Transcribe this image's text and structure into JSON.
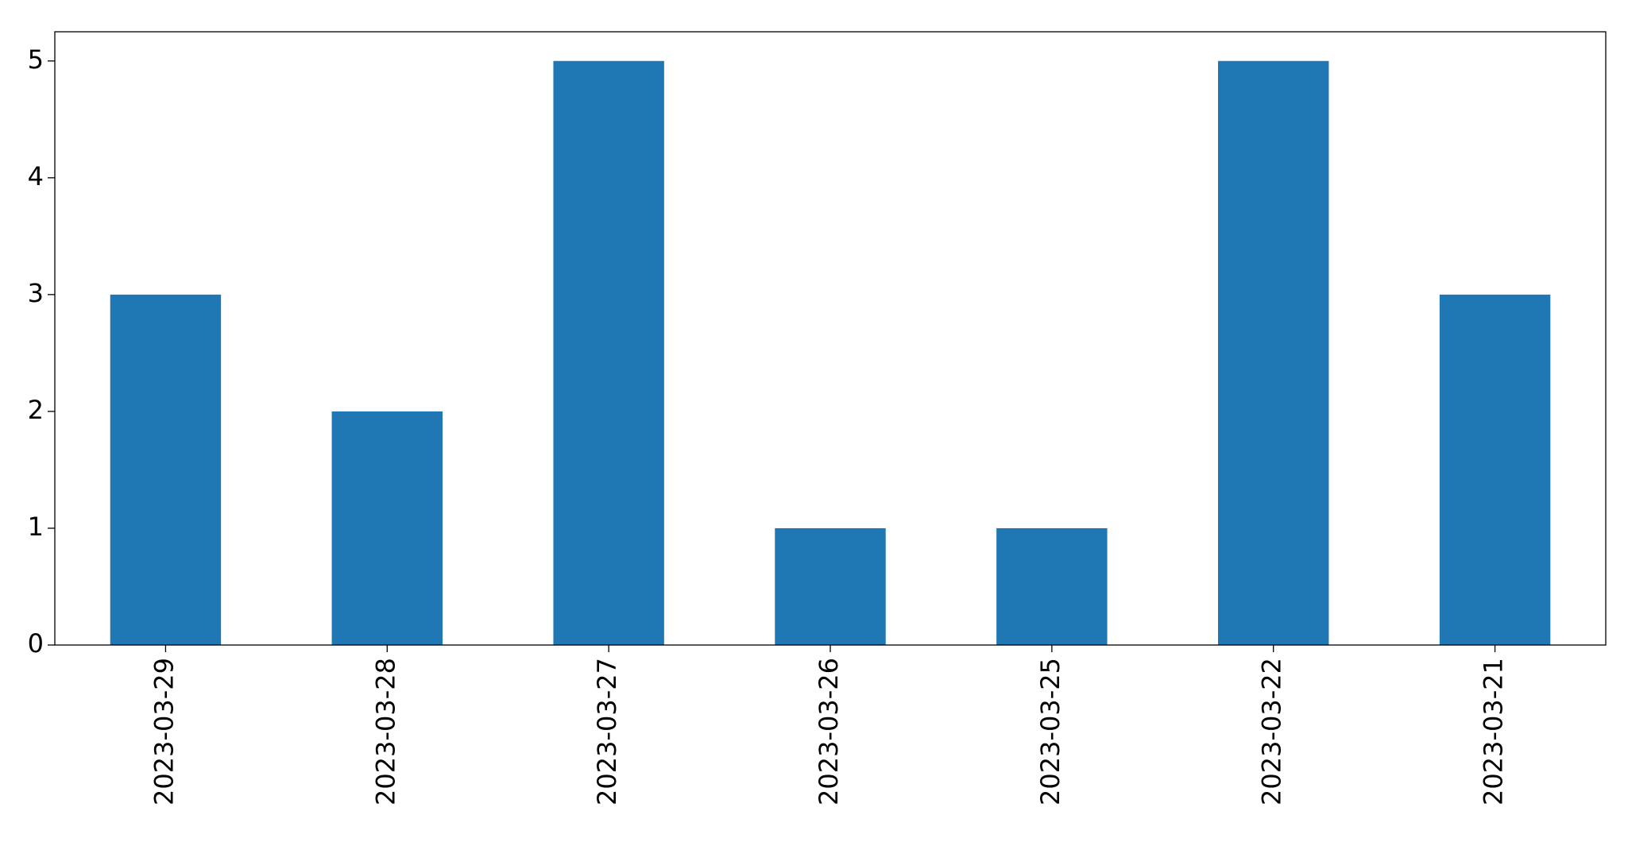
{
  "chart_data": {
    "type": "bar",
    "title": "",
    "xlabel": "",
    "ylabel": "",
    "categories": [
      "2023-03-29",
      "2023-03-28",
      "2023-03-27",
      "2023-03-26",
      "2023-03-25",
      "2023-03-22",
      "2023-03-21"
    ],
    "values": [
      3,
      2,
      5,
      1,
      1,
      5,
      3
    ],
    "ylim": [
      0,
      5.25
    ],
    "yticks": [
      "0",
      "1",
      "2",
      "3",
      "4",
      "5"
    ],
    "bar_color": "#1f77b4",
    "grid": false,
    "legend": "none"
  }
}
